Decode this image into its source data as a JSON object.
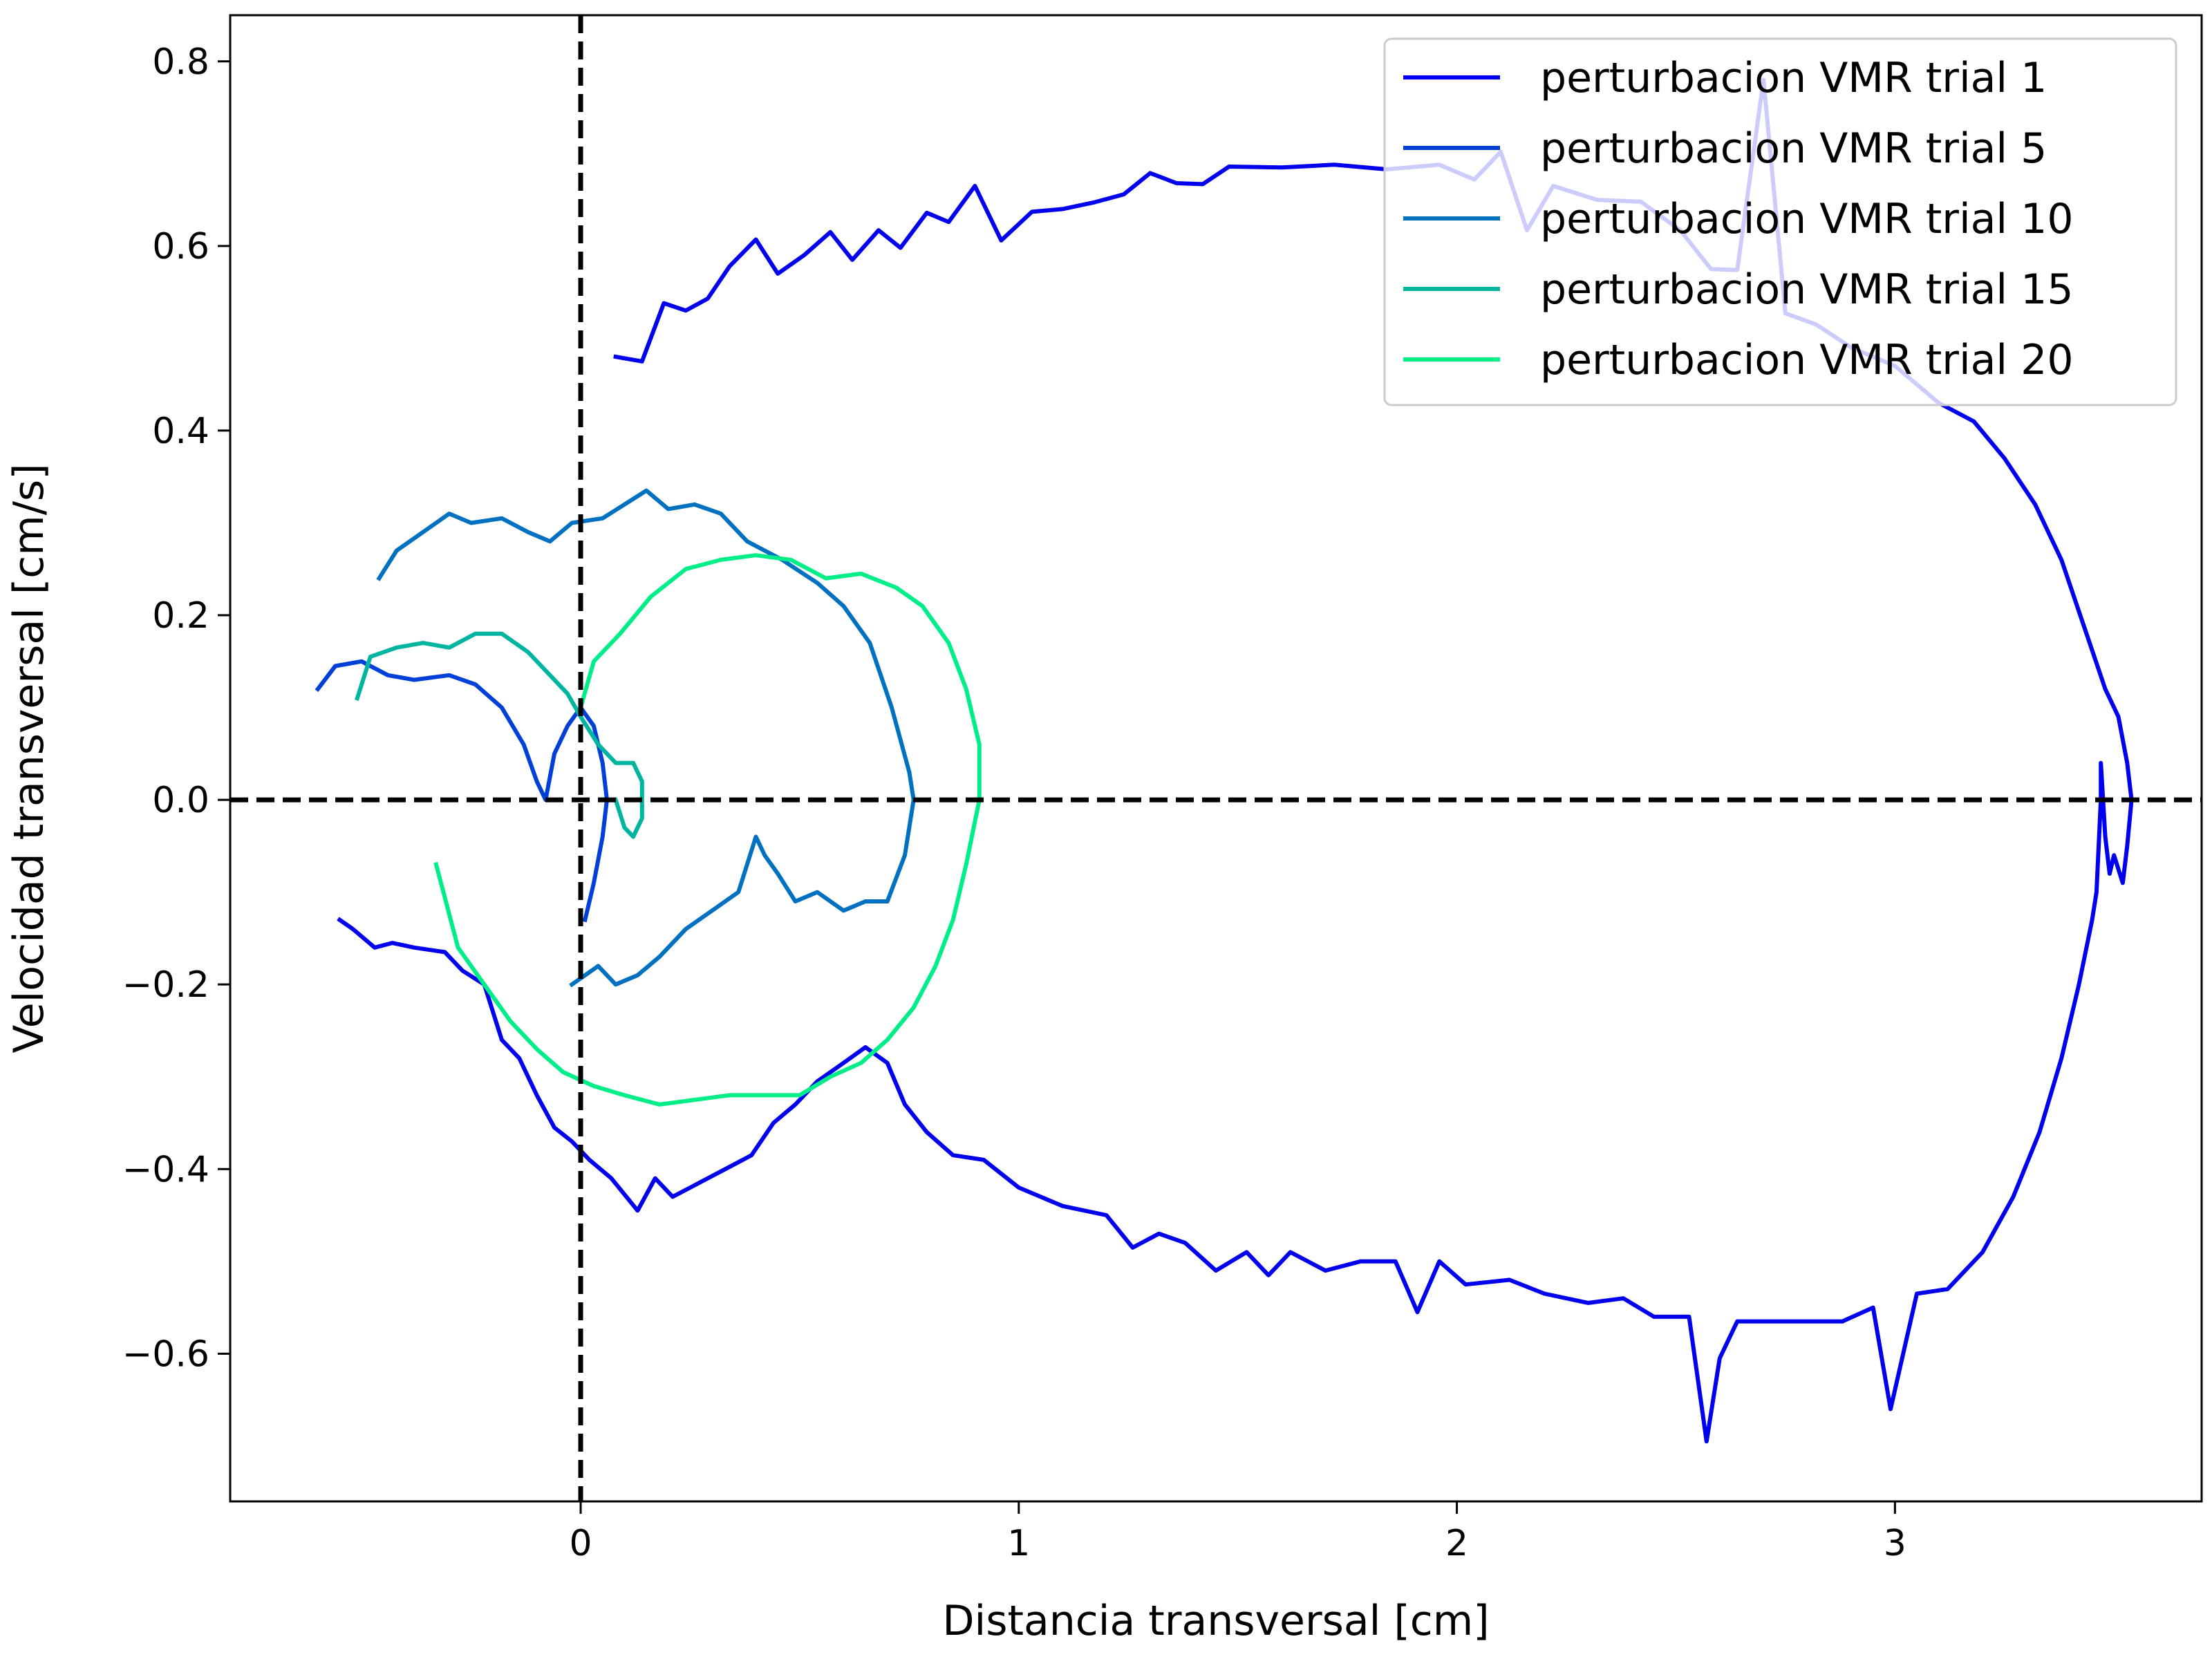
{
  "chart_data": {
    "type": "line",
    "title": "",
    "xlabel": "Distancia transversal [cm]",
    "ylabel": "Velocidad transversal [cm/s]",
    "xlim": [
      -0.8,
      3.7
    ],
    "ylim": [
      -0.76,
      0.85
    ],
    "xticks": [
      0,
      1,
      2,
      3
    ],
    "xtick_labels": [
      "0",
      "1",
      "2",
      "3"
    ],
    "yticks": [
      -0.6,
      -0.4,
      -0.2,
      0.0,
      0.2,
      0.4,
      0.6,
      0.8
    ],
    "ytick_labels": [
      "−0.6",
      "−0.4",
      "−0.2",
      "0.0",
      "0.2",
      "0.4",
      "0.6",
      "0.8"
    ],
    "grid": false,
    "legend_position": "upper-right",
    "reference_lines": [
      {
        "orientation": "vertical",
        "value": 0,
        "style": "dashed",
        "color": "#000000"
      },
      {
        "orientation": "horizontal",
        "value": 0,
        "style": "dashed",
        "color": "#000000"
      }
    ],
    "series": [
      {
        "name": "perturbacion VMR trial 1",
        "color": "#0000ee",
        "points": [
          [
            0.08,
            0.48
          ],
          [
            0.14,
            0.475
          ],
          [
            0.19,
            0.538
          ],
          [
            0.24,
            0.53
          ],
          [
            0.29,
            0.543
          ],
          [
            0.34,
            0.578
          ],
          [
            0.4,
            0.607
          ],
          [
            0.45,
            0.57
          ],
          [
            0.51,
            0.59
          ],
          [
            0.57,
            0.615
          ],
          [
            0.62,
            0.585
          ],
          [
            0.68,
            0.617
          ],
          [
            0.73,
            0.598
          ],
          [
            0.79,
            0.636
          ],
          [
            0.84,
            0.626
          ],
          [
            0.9,
            0.665
          ],
          [
            0.96,
            0.606
          ],
          [
            1.03,
            0.637
          ],
          [
            1.1,
            0.64
          ],
          [
            1.17,
            0.647
          ],
          [
            1.24,
            0.656
          ],
          [
            1.3,
            0.679
          ],
          [
            1.36,
            0.668
          ],
          [
            1.42,
            0.667
          ],
          [
            1.48,
            0.686
          ],
          [
            1.6,
            0.685
          ],
          [
            1.72,
            0.688
          ],
          [
            1.84,
            0.683
          ],
          [
            1.96,
            0.688
          ],
          [
            2.04,
            0.672
          ],
          [
            2.1,
            0.702
          ],
          [
            2.16,
            0.617
          ],
          [
            2.22,
            0.665
          ],
          [
            2.32,
            0.65
          ],
          [
            2.42,
            0.648
          ],
          [
            2.51,
            0.617
          ],
          [
            2.58,
            0.575
          ],
          [
            2.64,
            0.574
          ],
          [
            2.7,
            0.78
          ],
          [
            2.75,
            0.527
          ],
          [
            2.82,
            0.515
          ],
          [
            2.9,
            0.49
          ],
          [
            3.0,
            0.47
          ],
          [
            3.1,
            0.43
          ],
          [
            3.18,
            0.41
          ],
          [
            3.25,
            0.37
          ],
          [
            3.32,
            0.32
          ],
          [
            3.38,
            0.26
          ],
          [
            3.43,
            0.19
          ],
          [
            3.48,
            0.12
          ],
          [
            3.51,
            0.09
          ],
          [
            3.53,
            0.04
          ],
          [
            3.54,
            0.0
          ],
          [
            3.53,
            -0.05
          ],
          [
            3.52,
            -0.09
          ],
          [
            3.5,
            -0.06
          ],
          [
            3.49,
            -0.08
          ],
          [
            3.48,
            -0.04
          ],
          [
            3.47,
            0.04
          ],
          [
            3.47,
            0.0
          ],
          [
            3.46,
            -0.1
          ],
          [
            3.45,
            -0.13
          ],
          [
            3.42,
            -0.2
          ],
          [
            3.38,
            -0.28
          ],
          [
            3.33,
            -0.36
          ],
          [
            3.27,
            -0.43
          ],
          [
            3.2,
            -0.49
          ],
          [
            3.12,
            -0.53
          ],
          [
            3.05,
            -0.535
          ],
          [
            2.99,
            -0.66
          ],
          [
            2.95,
            -0.55
          ],
          [
            2.88,
            -0.565
          ],
          [
            2.8,
            -0.565
          ],
          [
            2.72,
            -0.565
          ],
          [
            2.64,
            -0.565
          ],
          [
            2.6,
            -0.605
          ],
          [
            2.57,
            -0.695
          ],
          [
            2.53,
            -0.56
          ],
          [
            2.45,
            -0.56
          ],
          [
            2.38,
            -0.54
          ],
          [
            2.3,
            -0.545
          ],
          [
            2.2,
            -0.535
          ],
          [
            2.12,
            -0.52
          ],
          [
            2.02,
            -0.525
          ],
          [
            1.96,
            -0.5
          ],
          [
            1.91,
            -0.555
          ],
          [
            1.86,
            -0.5
          ],
          [
            1.78,
            -0.5
          ],
          [
            1.7,
            -0.51
          ],
          [
            1.62,
            -0.49
          ],
          [
            1.57,
            -0.515
          ],
          [
            1.52,
            -0.49
          ],
          [
            1.45,
            -0.51
          ],
          [
            1.38,
            -0.48
          ],
          [
            1.32,
            -0.47
          ],
          [
            1.26,
            -0.485
          ],
          [
            1.2,
            -0.45
          ],
          [
            1.1,
            -0.44
          ],
          [
            1.0,
            -0.42
          ],
          [
            0.92,
            -0.39
          ],
          [
            0.85,
            -0.385
          ],
          [
            0.79,
            -0.36
          ],
          [
            0.74,
            -0.33
          ],
          [
            0.7,
            -0.285
          ],
          [
            0.65,
            -0.268
          ],
          [
            0.6,
            -0.285
          ],
          [
            0.54,
            -0.305
          ],
          [
            0.49,
            -0.33
          ],
          [
            0.44,
            -0.35
          ],
          [
            0.39,
            -0.385
          ],
          [
            0.33,
            -0.4
          ],
          [
            0.25,
            -0.42
          ],
          [
            0.21,
            -0.43
          ],
          [
            0.17,
            -0.41
          ],
          [
            0.13,
            -0.445
          ],
          [
            0.07,
            -0.41
          ],
          [
            0.02,
            -0.39
          ],
          [
            -0.02,
            -0.37
          ],
          [
            -0.06,
            -0.355
          ],
          [
            -0.1,
            -0.32
          ],
          [
            -0.14,
            -0.28
          ],
          [
            -0.18,
            -0.26
          ],
          [
            -0.22,
            -0.2
          ],
          [
            -0.27,
            -0.185
          ],
          [
            -0.31,
            -0.165
          ],
          [
            -0.38,
            -0.16
          ],
          [
            -0.43,
            -0.155
          ],
          [
            -0.47,
            -0.16
          ],
          [
            -0.52,
            -0.14
          ],
          [
            -0.55,
            -0.13
          ]
        ]
      },
      {
        "name": "perturbacion VMR trial 5",
        "color": "#0040d8",
        "points": [
          [
            -0.6,
            0.12
          ],
          [
            -0.56,
            0.145
          ],
          [
            -0.5,
            0.15
          ],
          [
            -0.44,
            0.135
          ],
          [
            -0.38,
            0.13
          ],
          [
            -0.3,
            0.135
          ],
          [
            -0.24,
            0.125
          ],
          [
            -0.18,
            0.1
          ],
          [
            -0.13,
            0.06
          ],
          [
            -0.1,
            0.02
          ],
          [
            -0.08,
            0.0
          ],
          [
            -0.06,
            0.05
          ],
          [
            -0.03,
            0.08
          ],
          [
            0.0,
            0.1
          ],
          [
            0.03,
            0.08
          ],
          [
            0.05,
            0.04
          ],
          [
            0.06,
            0.0
          ],
          [
            0.05,
            -0.04
          ],
          [
            0.03,
            -0.09
          ],
          [
            0.01,
            -0.13
          ]
        ]
      },
      {
        "name": "perturbacion VMR trial 10",
        "color": "#0070c0",
        "points": [
          [
            -0.46,
            0.24
          ],
          [
            -0.42,
            0.27
          ],
          [
            -0.36,
            0.29
          ],
          [
            -0.3,
            0.31
          ],
          [
            -0.25,
            0.3
          ],
          [
            -0.18,
            0.305
          ],
          [
            -0.12,
            0.29
          ],
          [
            -0.07,
            0.28
          ],
          [
            -0.02,
            0.3
          ],
          [
            0.05,
            0.305
          ],
          [
            0.1,
            0.32
          ],
          [
            0.15,
            0.335
          ],
          [
            0.2,
            0.315
          ],
          [
            0.26,
            0.32
          ],
          [
            0.32,
            0.31
          ],
          [
            0.38,
            0.28
          ],
          [
            0.46,
            0.26
          ],
          [
            0.54,
            0.235
          ],
          [
            0.6,
            0.21
          ],
          [
            0.66,
            0.17
          ],
          [
            0.71,
            0.1
          ],
          [
            0.75,
            0.03
          ],
          [
            0.76,
            0.0
          ],
          [
            0.74,
            -0.06
          ],
          [
            0.7,
            -0.11
          ],
          [
            0.65,
            -0.11
          ],
          [
            0.6,
            -0.12
          ],
          [
            0.54,
            -0.1
          ],
          [
            0.49,
            -0.11
          ],
          [
            0.45,
            -0.08
          ],
          [
            0.42,
            -0.06
          ],
          [
            0.4,
            -0.04
          ],
          [
            0.36,
            -0.1
          ],
          [
            0.3,
            -0.12
          ],
          [
            0.24,
            -0.14
          ],
          [
            0.18,
            -0.17
          ],
          [
            0.13,
            -0.19
          ],
          [
            0.08,
            -0.2
          ],
          [
            0.04,
            -0.18
          ],
          [
            -0.02,
            -0.2
          ]
        ]
      },
      {
        "name": "perturbacion VMR trial 15",
        "color": "#00b5a0",
        "points": [
          [
            -0.51,
            0.11
          ],
          [
            -0.48,
            0.155
          ],
          [
            -0.42,
            0.165
          ],
          [
            -0.36,
            0.17
          ],
          [
            -0.3,
            0.165
          ],
          [
            -0.24,
            0.18
          ],
          [
            -0.18,
            0.18
          ],
          [
            -0.12,
            0.16
          ],
          [
            -0.08,
            0.14
          ],
          [
            -0.03,
            0.115
          ],
          [
            0.0,
            0.09
          ],
          [
            0.04,
            0.06
          ],
          [
            0.08,
            0.04
          ],
          [
            0.12,
            0.04
          ],
          [
            0.14,
            0.02
          ],
          [
            0.14,
            -0.02
          ],
          [
            0.12,
            -0.04
          ],
          [
            0.1,
            -0.03
          ],
          [
            0.08,
            0.0
          ]
        ]
      },
      {
        "name": "perturbacion VMR trial 20",
        "color": "#00ee88",
        "points": [
          [
            -0.33,
            -0.07
          ],
          [
            -0.28,
            -0.16
          ],
          [
            -0.22,
            -0.2
          ],
          [
            -0.16,
            -0.24
          ],
          [
            -0.1,
            -0.27
          ],
          [
            -0.04,
            -0.295
          ],
          [
            0.03,
            -0.31
          ],
          [
            0.1,
            -0.32
          ],
          [
            0.18,
            -0.33
          ],
          [
            0.26,
            -0.325
          ],
          [
            0.34,
            -0.32
          ],
          [
            0.42,
            -0.32
          ],
          [
            0.5,
            -0.32
          ],
          [
            0.57,
            -0.3
          ],
          [
            0.64,
            -0.285
          ],
          [
            0.7,
            -0.26
          ],
          [
            0.76,
            -0.225
          ],
          [
            0.81,
            -0.18
          ],
          [
            0.85,
            -0.13
          ],
          [
            0.88,
            -0.07
          ],
          [
            0.91,
            0.0
          ],
          [
            0.91,
            0.06
          ],
          [
            0.88,
            0.12
          ],
          [
            0.84,
            0.17
          ],
          [
            0.78,
            0.21
          ],
          [
            0.72,
            0.23
          ],
          [
            0.64,
            0.245
          ],
          [
            0.56,
            0.24
          ],
          [
            0.48,
            0.26
          ],
          [
            0.4,
            0.265
          ],
          [
            0.32,
            0.26
          ],
          [
            0.24,
            0.25
          ],
          [
            0.16,
            0.22
          ],
          [
            0.09,
            0.18
          ],
          [
            0.03,
            0.15
          ],
          [
            0.0,
            0.1
          ]
        ]
      }
    ]
  }
}
